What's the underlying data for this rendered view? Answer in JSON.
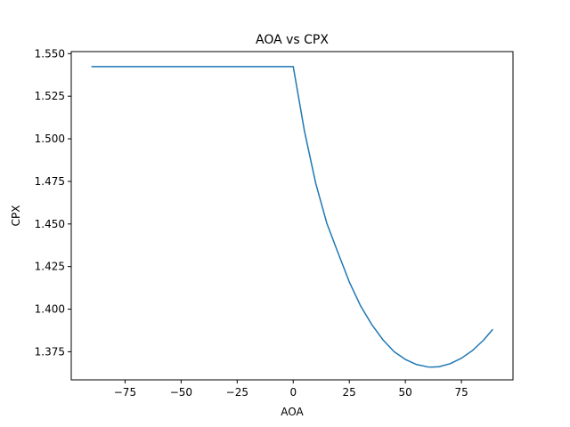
{
  "chart_data": {
    "type": "line",
    "title": "AOA vs CPX",
    "xlabel": "AOA",
    "ylabel": "CPX",
    "xlim": [
      -99,
      98
    ],
    "ylim": [
      1.3585,
      1.5512
    ],
    "xticks": [
      -75,
      -50,
      -25,
      0,
      25,
      50,
      75
    ],
    "xtick_labels": [
      "−75",
      "−50",
      "−25",
      "0",
      "25",
      "50",
      "75"
    ],
    "yticks": [
      1.375,
      1.4,
      1.425,
      1.45,
      1.475,
      1.5,
      1.525,
      1.55
    ],
    "ytick_labels": [
      "1.375",
      "1.400",
      "1.425",
      "1.450",
      "1.475",
      "1.500",
      "1.525",
      "1.550"
    ],
    "grid": false,
    "line_color": "#1f77b4",
    "series": [
      {
        "x": [
          -90,
          -75,
          -60,
          -45,
          -30,
          -15,
          0,
          5,
          10,
          15,
          20,
          25,
          30,
          35,
          40,
          45,
          50,
          55,
          60,
          62,
          65,
          70,
          75,
          80,
          85,
          89
        ],
        "values": [
          1.5424,
          1.5424,
          1.5424,
          1.5424,
          1.5424,
          1.5424,
          1.5424,
          1.5045,
          1.474,
          1.4503,
          1.433,
          1.416,
          1.402,
          1.391,
          1.382,
          1.375,
          1.3705,
          1.3675,
          1.3661,
          1.366,
          1.3662,
          1.368,
          1.3712,
          1.3758,
          1.382,
          1.3882
        ]
      }
    ]
  }
}
